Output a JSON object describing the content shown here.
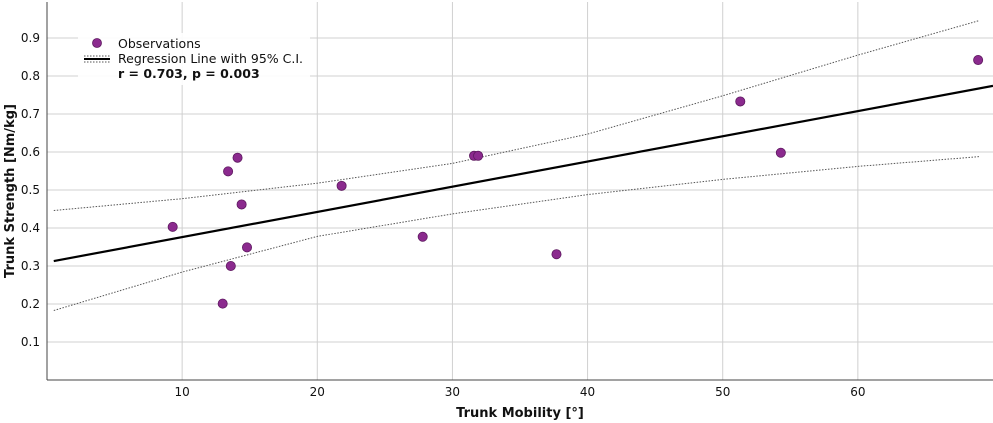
{
  "chart_data": {
    "type": "scatter",
    "xlabel": "Trunk Mobility [°]",
    "ylabel": "Trunk Strength [Nm/kg]",
    "xlim": [
      0,
      70
    ],
    "ylim": [
      0,
      1.0
    ],
    "x_ticks": [
      10,
      20,
      30,
      40,
      50,
      60
    ],
    "y_ticks": [
      0.1,
      0.2,
      0.3,
      0.4,
      0.5,
      0.6,
      0.7,
      0.8,
      0.9
    ],
    "grid": true,
    "legend_position": "top-left",
    "legend": {
      "observations": "Observations",
      "regression": "Regression Line with 95% C.I.",
      "stats": "r = 0.703, p = 0.003"
    },
    "colors": {
      "points": "#8b2a8e",
      "point_edge": "#5e1a60",
      "regression": "#000000",
      "ci": "#555555"
    },
    "series": [
      {
        "name": "Observations",
        "x": [
          9.3,
          13.0,
          13.4,
          13.6,
          14.1,
          14.4,
          14.8,
          21.8,
          27.8,
          31.6,
          31.9,
          37.7,
          51.3,
          54.3,
          68.9
        ],
        "y": [
          0.403,
          0.201,
          0.549,
          0.3,
          0.585,
          0.462,
          0.349,
          0.511,
          0.377,
          0.59,
          0.59,
          0.331,
          0.733,
          0.598,
          0.842
        ]
      }
    ],
    "regression_line": {
      "x": [
        0.5,
        70
      ],
      "y": [
        0.313,
        0.774
      ]
    },
    "ci_upper": {
      "x": [
        0.5,
        10,
        20,
        30,
        40,
        50,
        60,
        69
      ],
      "y": [
        0.446,
        0.477,
        0.518,
        0.57,
        0.647,
        0.748,
        0.855,
        0.946
      ]
    },
    "ci_lower": {
      "x": [
        0.5,
        10,
        20,
        30,
        40,
        50,
        60,
        69
      ],
      "y": [
        0.183,
        0.284,
        0.378,
        0.437,
        0.488,
        0.528,
        0.562,
        0.588
      ]
    }
  }
}
